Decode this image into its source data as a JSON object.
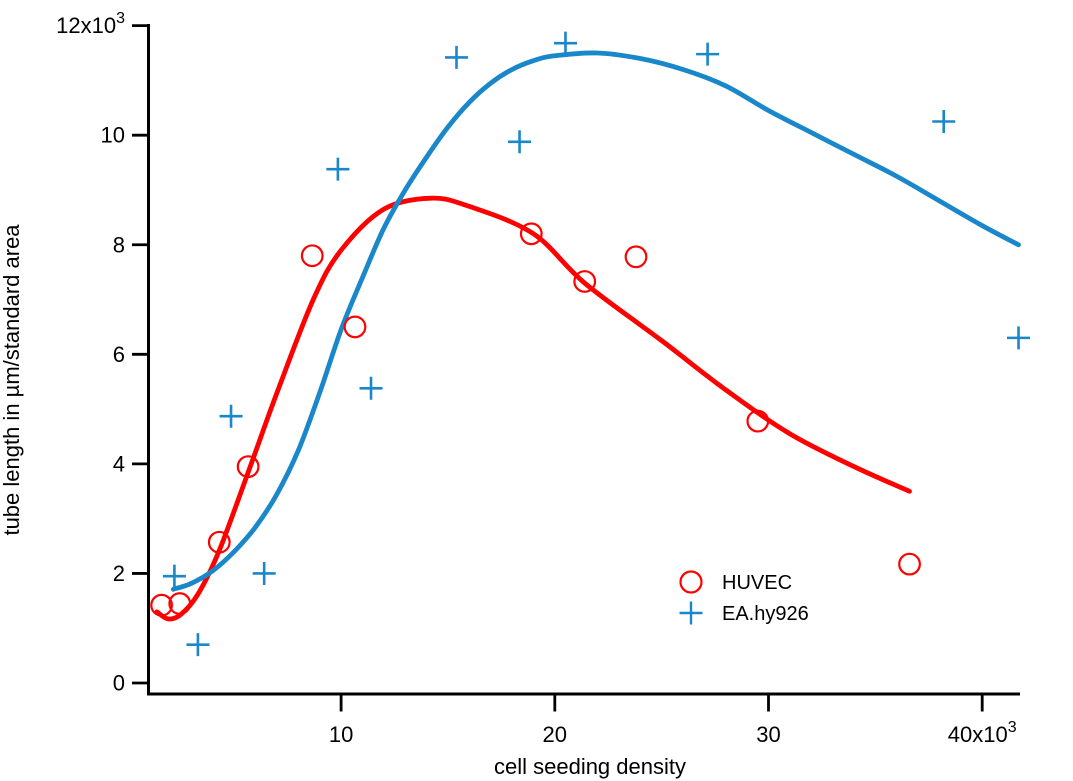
{
  "figure": {
    "background": "#ffffff",
    "axis_color": "#000000",
    "text_color": "#000000"
  },
  "chart_data": {
    "type": "scatter",
    "title": "",
    "xlabel": "cell seeding density",
    "ylabel": "tube length in µm/standard area",
    "x_unit_multiplier_label": "x10³",
    "y_unit_multiplier_label": "x10³",
    "xlim": [
      1,
      41.8
    ],
    "ylim": [
      0,
      12
    ],
    "grid": false,
    "legend_position": "lower-right",
    "x_ticks": [
      {
        "value": 10,
        "label": "10",
        "sup": ""
      },
      {
        "value": 20,
        "label": "20",
        "sup": ""
      },
      {
        "value": 30,
        "label": "30",
        "sup": ""
      },
      {
        "value": 40,
        "label": "40x10",
        "sup": "3"
      }
    ],
    "y_ticks": [
      {
        "value": 0,
        "label": "0",
        "sup": ""
      },
      {
        "value": 2,
        "label": "2",
        "sup": ""
      },
      {
        "value": 4,
        "label": "4",
        "sup": ""
      },
      {
        "value": 6,
        "label": "6",
        "sup": ""
      },
      {
        "value": 8,
        "label": "8",
        "sup": ""
      },
      {
        "value": 10,
        "label": "10",
        "sup": ""
      },
      {
        "value": 12,
        "label": "12x10",
        "sup": "3"
      }
    ],
    "series": [
      {
        "name": "HUVEC",
        "marker": "circle",
        "color": "#ff0000",
        "points": [
          [
            1.6,
            1.42
          ],
          [
            2.45,
            1.45
          ],
          [
            4.3,
            2.57
          ],
          [
            5.65,
            3.95
          ],
          [
            8.65,
            7.8
          ],
          [
            10.65,
            6.5
          ],
          [
            18.9,
            8.2
          ],
          [
            21.4,
            7.33
          ],
          [
            23.8,
            7.78
          ],
          [
            29.5,
            4.78
          ],
          [
            36.6,
            2.17
          ]
        ],
        "fit_curve": [
          [
            1.38,
            1.3
          ],
          [
            1.9,
            1.17
          ],
          [
            2.5,
            1.25
          ],
          [
            3.3,
            1.62
          ],
          [
            4.3,
            2.42
          ],
          [
            5.7,
            3.9
          ],
          [
            7.0,
            5.3
          ],
          [
            8.7,
            7.0
          ],
          [
            10.0,
            7.9
          ],
          [
            12.0,
            8.65
          ],
          [
            14.2,
            8.85
          ],
          [
            16.0,
            8.7
          ],
          [
            19.0,
            8.2
          ],
          [
            21.4,
            7.3
          ],
          [
            25.0,
            6.25
          ],
          [
            28.0,
            5.35
          ],
          [
            31.0,
            4.55
          ],
          [
            34.0,
            3.95
          ],
          [
            36.6,
            3.5
          ]
        ]
      },
      {
        "name": "EA.hy926",
        "marker": "plus",
        "color": "#1987c9",
        "points": [
          [
            2.2,
            1.95
          ],
          [
            3.3,
            0.7
          ],
          [
            4.85,
            4.87
          ],
          [
            6.4,
            2.0
          ],
          [
            9.85,
            9.38
          ],
          [
            11.4,
            5.38
          ],
          [
            15.4,
            11.42
          ],
          [
            18.35,
            9.88
          ],
          [
            20.5,
            11.68
          ],
          [
            27.15,
            11.48
          ],
          [
            38.2,
            10.25
          ],
          [
            41.7,
            6.3
          ]
        ],
        "fit_curve": [
          [
            2.15,
            1.71
          ],
          [
            3.0,
            1.82
          ],
          [
            4.0,
            2.05
          ],
          [
            5.0,
            2.4
          ],
          [
            6.0,
            2.85
          ],
          [
            7.0,
            3.45
          ],
          [
            8.0,
            4.25
          ],
          [
            9.0,
            5.3
          ],
          [
            10.0,
            6.45
          ],
          [
            11.0,
            7.4
          ],
          [
            12.0,
            8.3
          ],
          [
            13.0,
            9.0
          ],
          [
            14.0,
            9.6
          ],
          [
            15.0,
            10.15
          ],
          [
            16.0,
            10.6
          ],
          [
            17.0,
            10.95
          ],
          [
            18.0,
            11.2
          ],
          [
            19.0,
            11.36
          ],
          [
            20.0,
            11.45
          ],
          [
            22.0,
            11.5
          ],
          [
            24.0,
            11.4
          ],
          [
            26.0,
            11.2
          ],
          [
            28.0,
            10.9
          ],
          [
            30.0,
            10.45
          ],
          [
            32.0,
            10.05
          ],
          [
            34.0,
            9.65
          ],
          [
            36.0,
            9.25
          ],
          [
            38.0,
            8.8
          ],
          [
            40.0,
            8.35
          ],
          [
            41.7,
            8.0
          ]
        ]
      }
    ]
  }
}
